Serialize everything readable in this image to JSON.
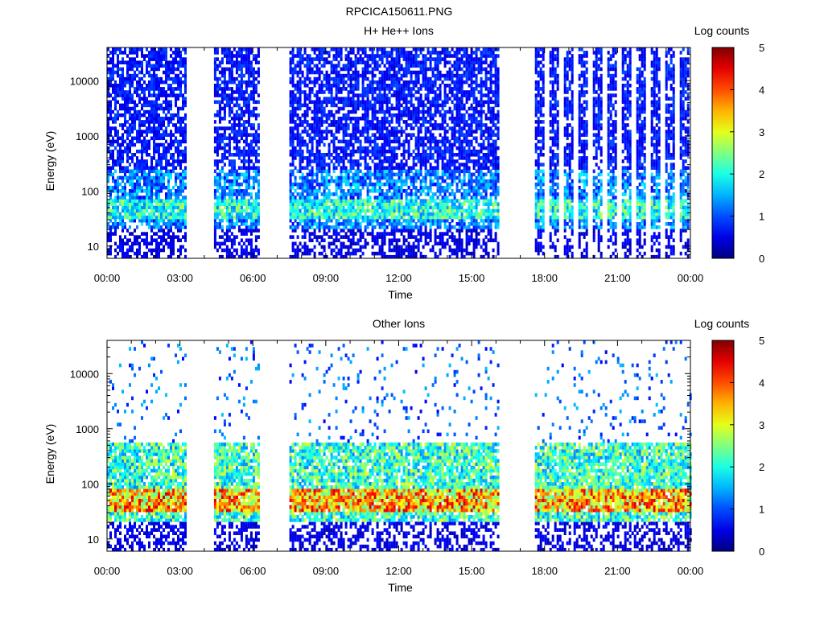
{
  "figure_title": "RPCICA150611.PNG",
  "chart_data": [
    {
      "type": "heatmap",
      "title": "H+ He++ Ions",
      "xlabel": "Time",
      "ylabel": "Energy (eV)",
      "x_ticks": [
        "00:00",
        "03:00",
        "06:00",
        "09:00",
        "12:00",
        "15:00",
        "18:00",
        "21:00",
        "00:00"
      ],
      "x_range_hours": [
        0,
        24
      ],
      "y_scale": "log",
      "y_range_ev": [
        6,
        40000
      ],
      "y_ticks": [
        {
          "value": 10,
          "label": "10"
        },
        {
          "value": 100,
          "label": "100"
        },
        {
          "value": 1000,
          "label": "1000"
        },
        {
          "value": 10000,
          "label": "10000"
        }
      ],
      "colorbar": {
        "label": "Log counts",
        "range": [
          0,
          5
        ],
        "ticks": [
          "0",
          "1",
          "2",
          "3",
          "4",
          "5"
        ]
      },
      "data_segments_hours": [
        [
          0.0,
          3.2
        ],
        [
          4.4,
          6.2
        ],
        [
          7.5,
          16.1
        ],
        [
          17.6,
          24.0
        ]
      ],
      "bright_band": {
        "energy_ev": [
          30,
          70
        ],
        "peak_log_counts": 2.8
      }
    },
    {
      "type": "heatmap",
      "title": "Other Ions",
      "xlabel": "Time",
      "ylabel": "Energy (eV)",
      "x_ticks": [
        "00:00",
        "03:00",
        "06:00",
        "09:00",
        "12:00",
        "15:00",
        "18:00",
        "21:00",
        "00:00"
      ],
      "x_range_hours": [
        0,
        24
      ],
      "y_scale": "log",
      "y_range_ev": [
        6,
        40000
      ],
      "y_ticks": [
        {
          "value": 10,
          "label": "10"
        },
        {
          "value": 100,
          "label": "100"
        },
        {
          "value": 1000,
          "label": "1000"
        },
        {
          "value": 10000,
          "label": "10000"
        }
      ],
      "colorbar": {
        "label": "Log counts",
        "range": [
          0,
          5
        ],
        "ticks": [
          "0",
          "1",
          "2",
          "3",
          "4",
          "5"
        ]
      },
      "data_segments_hours": [
        [
          0.0,
          3.2
        ],
        [
          4.4,
          6.2
        ],
        [
          7.5,
          16.1
        ],
        [
          17.6,
          24.0
        ]
      ],
      "bright_band": {
        "energy_ev": [
          30,
          80
        ],
        "peak_log_counts": 4.6
      }
    }
  ]
}
